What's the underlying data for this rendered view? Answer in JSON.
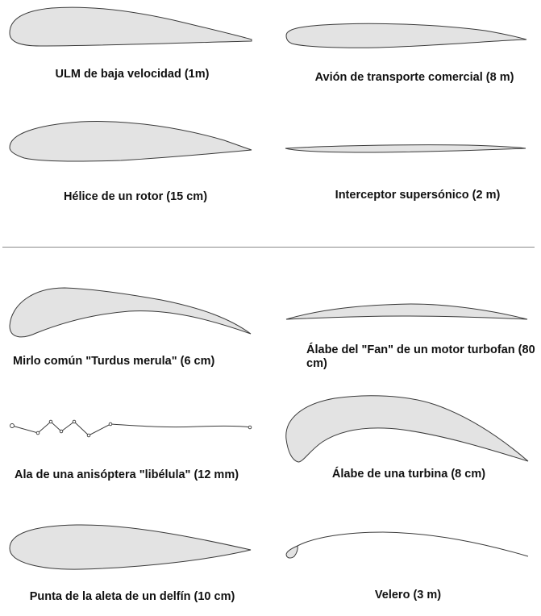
{
  "top_section": {
    "ulm": {
      "label": "ULM de baja velocidad (1m)"
    },
    "avion": {
      "label": "Avión de transporte comercial (8 m)"
    },
    "helice": {
      "label": "Hélice de un rotor (15 cm)"
    },
    "interceptor": {
      "label": "Interceptor supersónico (2 m)"
    }
  },
  "bottom_section": {
    "mirlo": {
      "label": "Mirlo común \"Turdus merula\"  (6 cm)"
    },
    "fan": {
      "label": "Álabe del \"Fan\" de un motor turbofan (80 cm)"
    },
    "libelula": {
      "label": "Ala de una anisóptera \"libélula\" (12 mm)"
    },
    "turbina": {
      "label": "Álabe de una turbina (8 cm)"
    },
    "delfin": {
      "label": "Punta de la aleta de un delfín (10 cm)"
    },
    "velero": {
      "label": "Velero (3 m)"
    }
  },
  "colors": {
    "fill": "#e3e3e3",
    "outline": "#3a3a3a",
    "divider": "#8a8a8a"
  }
}
